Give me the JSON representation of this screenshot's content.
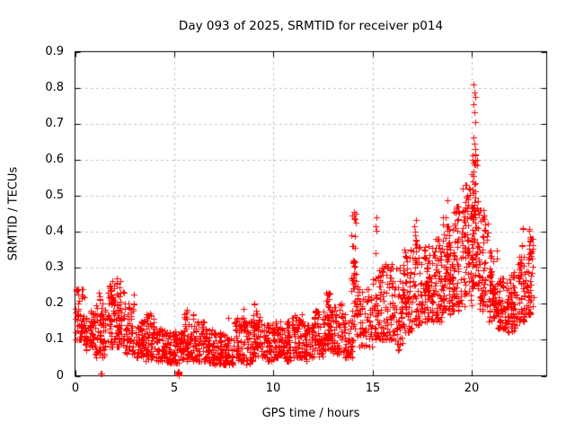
{
  "chart": {
    "title": "Day 093 of 2025, SRMTID for receiver p014",
    "xlabel": "GPS time / hours",
    "ylabel": "SRMTID / TECUs"
  },
  "colors": {
    "background": "#ffffff",
    "marker": "#ff0000",
    "grid": "#aaaaaa",
    "border": "#000000",
    "text": "#000000"
  },
  "chart_data": {
    "type": "scatter",
    "title": "Day 093 of 2025, SRMTID for receiver p014",
    "xlabel": "GPS time / hours",
    "ylabel": "SRMTID / TECUs",
    "xlim": [
      0,
      23.78
    ],
    "ylim": [
      0,
      0.9
    ],
    "xticks": [
      0,
      5,
      10,
      15,
      20
    ],
    "xtick_labels": [
      "0",
      "5",
      "10",
      "15",
      "20"
    ],
    "yticks": [
      0,
      0.1,
      0.2,
      0.3,
      0.4,
      0.5,
      0.6,
      0.7,
      0.8,
      0.9
    ],
    "ytick_labels": [
      "0",
      "0.1",
      "0.2",
      "0.3",
      "0.4",
      "0.5",
      "0.6",
      "0.7",
      "0.8",
      "0.9"
    ],
    "grid": true,
    "legend": null,
    "marker": {
      "shape": "plus",
      "color": "#ff0000",
      "size": 7
    },
    "seed": 42,
    "skew": 1.45,
    "cluster_prob": 0.4,
    "bands_format": [
      "t_start_hr",
      "t_end_hr",
      "y_min",
      "y_max",
      "n_points"
    ],
    "bands": [
      [
        0.0,
        0.5,
        0.1,
        0.24,
        42
      ],
      [
        0.5,
        1.0,
        0.07,
        0.18,
        42
      ],
      [
        1.0,
        1.5,
        0.05,
        0.2,
        40
      ],
      [
        1.5,
        2.0,
        0.08,
        0.25,
        45
      ],
      [
        2.0,
        2.5,
        0.08,
        0.27,
        45
      ],
      [
        2.5,
        3.0,
        0.06,
        0.2,
        40
      ],
      [
        3.0,
        3.5,
        0.05,
        0.15,
        40
      ],
      [
        3.5,
        4.0,
        0.04,
        0.17,
        40
      ],
      [
        4.0,
        4.5,
        0.04,
        0.13,
        38
      ],
      [
        4.5,
        5.0,
        0.035,
        0.12,
        38
      ],
      [
        5.0,
        5.5,
        0.035,
        0.13,
        38
      ],
      [
        5.5,
        6.0,
        0.04,
        0.17,
        38
      ],
      [
        6.0,
        6.5,
        0.04,
        0.15,
        38
      ],
      [
        6.5,
        7.0,
        0.035,
        0.13,
        38
      ],
      [
        7.0,
        7.5,
        0.03,
        0.12,
        36
      ],
      [
        7.5,
        8.0,
        0.03,
        0.12,
        36
      ],
      [
        8.0,
        8.5,
        0.04,
        0.16,
        38
      ],
      [
        8.5,
        9.0,
        0.03,
        0.15,
        38
      ],
      [
        9.0,
        9.5,
        0.05,
        0.18,
        38
      ],
      [
        9.5,
        10.0,
        0.04,
        0.14,
        38
      ],
      [
        10.0,
        10.5,
        0.05,
        0.15,
        38
      ],
      [
        10.5,
        11.0,
        0.04,
        0.16,
        38
      ],
      [
        11.0,
        11.5,
        0.05,
        0.17,
        38
      ],
      [
        11.5,
        12.0,
        0.04,
        0.14,
        38
      ],
      [
        12.0,
        12.5,
        0.05,
        0.18,
        40
      ],
      [
        12.5,
        13.0,
        0.07,
        0.23,
        42
      ],
      [
        13.0,
        13.5,
        0.06,
        0.2,
        40
      ],
      [
        13.5,
        14.0,
        0.05,
        0.17,
        38
      ],
      [
        14.0,
        14.3,
        0.1,
        0.32,
        24
      ],
      [
        14.3,
        15.0,
        0.08,
        0.24,
        45
      ],
      [
        15.0,
        15.5,
        0.1,
        0.3,
        38
      ],
      [
        15.5,
        16.0,
        0.1,
        0.31,
        38
      ],
      [
        16.0,
        16.5,
        0.07,
        0.3,
        42
      ],
      [
        16.5,
        17.0,
        0.12,
        0.35,
        46
      ],
      [
        17.0,
        17.5,
        0.14,
        0.38,
        46
      ],
      [
        17.5,
        18.0,
        0.15,
        0.36,
        46
      ],
      [
        18.0,
        18.5,
        0.15,
        0.38,
        46
      ],
      [
        18.5,
        19.0,
        0.17,
        0.44,
        46
      ],
      [
        19.0,
        19.5,
        0.18,
        0.47,
        46
      ],
      [
        19.5,
        20.0,
        0.19,
        0.53,
        46
      ],
      [
        20.0,
        20.3,
        0.24,
        0.6,
        28
      ],
      [
        20.3,
        20.8,
        0.18,
        0.46,
        46
      ],
      [
        20.8,
        21.3,
        0.15,
        0.35,
        42
      ],
      [
        21.3,
        21.8,
        0.13,
        0.27,
        40
      ],
      [
        21.8,
        22.3,
        0.12,
        0.28,
        40
      ],
      [
        22.3,
        22.8,
        0.15,
        0.33,
        42
      ],
      [
        22.8,
        23.1,
        0.17,
        0.38,
        28
      ]
    ],
    "spikes_format": [
      "t_center_hr",
      "t_width_hr",
      "y_min",
      "y_max",
      "n_points"
    ],
    "spikes": [
      [
        1.22,
        0.06,
        0.17,
        0.245,
        4
      ],
      [
        1.9,
        0.1,
        0.2,
        0.28,
        7
      ],
      [
        2.95,
        0.06,
        0.15,
        0.24,
        4
      ],
      [
        3.8,
        0.1,
        0.12,
        0.175,
        5
      ],
      [
        5.2,
        0.1,
        0.001,
        0.012,
        8
      ],
      [
        5.62,
        0.08,
        0.12,
        0.19,
        5
      ],
      [
        6.4,
        0.06,
        0.11,
        0.155,
        4
      ],
      [
        8.45,
        0.08,
        0.11,
        0.19,
        6
      ],
      [
        9.05,
        0.08,
        0.12,
        0.205,
        6
      ],
      [
        11.05,
        0.08,
        0.11,
        0.175,
        5
      ],
      [
        12.75,
        0.1,
        0.14,
        0.235,
        7
      ],
      [
        14.05,
        0.22,
        0.14,
        0.47,
        24
      ],
      [
        15.18,
        0.08,
        0.26,
        0.44,
        6
      ],
      [
        17.15,
        0.1,
        0.28,
        0.46,
        9
      ],
      [
        18.75,
        0.08,
        0.3,
        0.49,
        6
      ],
      [
        18.9,
        0.08,
        0.28,
        0.42,
        5
      ],
      [
        19.65,
        0.1,
        0.3,
        0.52,
        7
      ],
      [
        20.12,
        0.22,
        0.25,
        0.62,
        40
      ],
      [
        20.95,
        0.1,
        0.22,
        0.34,
        6
      ],
      [
        22.1,
        0.08,
        0.18,
        0.29,
        5
      ],
      [
        22.55,
        0.06,
        0.36,
        0.415,
        4
      ],
      [
        22.92,
        0.1,
        0.26,
        0.41,
        9
      ]
    ],
    "points": [
      [
        20.1,
        0.81
      ],
      [
        20.13,
        0.786
      ],
      [
        20.16,
        0.773
      ],
      [
        20.1,
        0.754
      ],
      [
        20.13,
        0.731
      ],
      [
        20.16,
        0.704
      ],
      [
        20.09,
        0.662
      ],
      [
        20.13,
        0.645
      ],
      [
        20.18,
        0.629
      ],
      [
        1.28,
        0.005
      ],
      [
        1.33,
        0.005
      ],
      [
        7.72,
        0.162
      ]
    ],
    "max_point": [
      20.1,
      0.81
    ]
  }
}
